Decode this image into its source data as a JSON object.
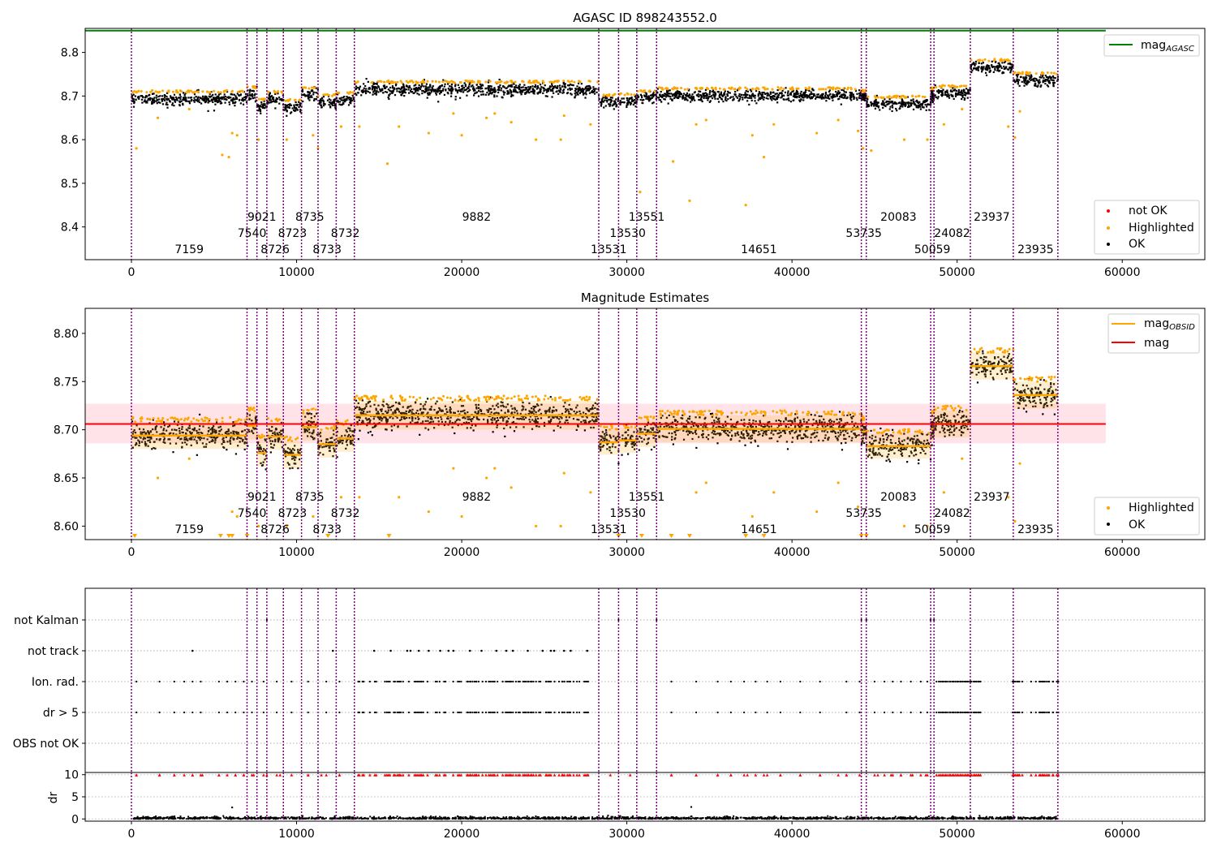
{
  "colors": {
    "obs_line": "#800080",
    "ok": "#000000",
    "highlighted": "#ffa500",
    "not_ok": "#ff0000",
    "agasc_line": "#008000",
    "mag_line": "#ff0000",
    "mag_band": "#ffc0cb",
    "obsid_mag": "#ffa500"
  },
  "chart_data": [
    {
      "id": "agasc_panel",
      "type": "scatter",
      "title": "AGASC ID 898243552.0",
      "xlim": [
        -2800,
        65000
      ],
      "ylim": [
        8.325,
        8.855
      ],
      "xticks": [
        0,
        10000,
        20000,
        30000,
        40000,
        50000,
        60000
      ],
      "yticks": [
        8.4,
        8.5,
        8.6,
        8.7,
        8.8
      ],
      "ytick_decimals": 1,
      "legends": [
        {
          "position": "top-right",
          "entries": [
            {
              "label": "mag",
              "sub": "AGASC",
              "kind": "line",
              "color": "#008000"
            }
          ]
        },
        {
          "position": "bottom-right",
          "entries": [
            {
              "label": "not OK",
              "kind": "dot",
              "color": "#ff0000"
            },
            {
              "label": "Highlighted",
              "kind": "dot",
              "color": "#ffa500"
            },
            {
              "label": "OK",
              "kind": "dot",
              "color": "#000000"
            }
          ]
        }
      ],
      "hline": {
        "y": 8.85,
        "x0": -2800,
        "x1": 59000,
        "color": "#008000"
      },
      "show_obsid_mean": false,
      "show_mag_band": false
    },
    {
      "id": "estimates_panel",
      "type": "scatter",
      "title": "Magnitude Estimates",
      "xlim": [
        -2800,
        65000
      ],
      "ylim": [
        8.586,
        8.826
      ],
      "xticks": [
        0,
        10000,
        20000,
        30000,
        40000,
        50000,
        60000
      ],
      "yticks": [
        8.6,
        8.65,
        8.7,
        8.75,
        8.8
      ],
      "ytick_decimals": 2,
      "legends": [
        {
          "position": "top-right",
          "entries": [
            {
              "label": "mag",
              "sub": "OBSID",
              "kind": "line",
              "color": "#ffa500"
            },
            {
              "label": "mag",
              "kind": "line",
              "color": "#ff0000"
            }
          ]
        },
        {
          "position": "bottom-right",
          "entries": [
            {
              "label": "Highlighted",
              "kind": "dot",
              "color": "#ffa500"
            },
            {
              "label": "OK",
              "kind": "dot",
              "color": "#000000"
            }
          ]
        }
      ],
      "mag": {
        "value": 8.706,
        "band": [
          8.686,
          8.727
        ],
        "x0": -2800,
        "x1": 59000
      },
      "show_obsid_mean": true,
      "show_mag_band": true,
      "below_markers_x": [
        200,
        5400,
        5900,
        6100,
        7000,
        11900,
        15600,
        29500,
        30900,
        32700,
        33800,
        37200,
        38300,
        44200,
        44500
      ]
    },
    {
      "id": "flags_panel",
      "type": "scatter",
      "xlim": [
        -2800,
        65000
      ],
      "categories": [
        "not Kalman",
        "not track",
        "Ion. rad.",
        "dr > 5",
        "OBS not OK"
      ]
    },
    {
      "id": "dr_panel",
      "type": "scatter",
      "xlim": [
        -2800,
        65000
      ],
      "ylim": [
        -0.5,
        10.5
      ],
      "ylabel": "dr",
      "xticks": [
        0,
        10000,
        20000,
        30000,
        40000,
        50000,
        60000
      ],
      "yticks": [
        0,
        5,
        10
      ]
    }
  ],
  "observations": [
    {
      "obsid": "7159",
      "x0": 0,
      "x1": 7000,
      "mean": 8.694,
      "spread": 0.014,
      "label_row": 3
    },
    {
      "obsid": "7540",
      "x0": 7000,
      "x1": 7600,
      "mean": 8.704,
      "spread": 0.014,
      "label_row": 2
    },
    {
      "obsid": "9021",
      "x0": 7600,
      "x1": 8200,
      "mean": 8.676,
      "spread": 0.014,
      "label_row": 1
    },
    {
      "obsid": "8726",
      "x0": 8200,
      "x1": 9200,
      "mean": 8.693,
      "spread": 0.014,
      "label_row": 3
    },
    {
      "obsid": "8723",
      "x0": 9200,
      "x1": 10300,
      "mean": 8.674,
      "spread": 0.014,
      "label_row": 2
    },
    {
      "obsid": "8735",
      "x0": 10300,
      "x1": 11300,
      "mean": 8.703,
      "spread": 0.014,
      "label_row": 1
    },
    {
      "obsid": "8733",
      "x0": 11300,
      "x1": 12400,
      "mean": 8.685,
      "spread": 0.014,
      "label_row": 3
    },
    {
      "obsid": "8732",
      "x0": 12400,
      "x1": 13500,
      "mean": 8.691,
      "spread": 0.014,
      "label_row": 2
    },
    {
      "obsid": "9882",
      "x0": 13500,
      "x1": 28300,
      "mean": 8.715,
      "spread": 0.015,
      "label_row": 1
    },
    {
      "obsid": "13531",
      "x0": 28300,
      "x1": 29500,
      "mean": 8.687,
      "spread": 0.013,
      "label_row": 3
    },
    {
      "obsid": "13530",
      "x0": 29500,
      "x1": 30600,
      "mean": 8.689,
      "spread": 0.013,
      "label_row": 2
    },
    {
      "obsid": "13551",
      "x0": 30600,
      "x1": 31800,
      "mean": 8.696,
      "spread": 0.014,
      "label_row": 1
    },
    {
      "obsid": "14651",
      "x0": 31800,
      "x1": 44200,
      "mean": 8.701,
      "spread": 0.014,
      "label_row": 3
    },
    {
      "obsid": "53735",
      "x0": 44200,
      "x1": 44500,
      "mean": 8.698,
      "spread": 0.012,
      "label_row": 2
    },
    {
      "obsid": "20083",
      "x0": 44500,
      "x1": 48400,
      "mean": 8.683,
      "spread": 0.013,
      "label_row": 1
    },
    {
      "obsid": "50059",
      "x0": 48400,
      "x1": 48600,
      "mean": 8.701,
      "spread": 0.014,
      "label_row": 3
    },
    {
      "obsid": "24082",
      "x0": 48600,
      "x1": 50800,
      "mean": 8.706,
      "spread": 0.014,
      "label_row": 2
    },
    {
      "obsid": "23937",
      "x0": 50800,
      "x1": 53400,
      "mean": 8.766,
      "spread": 0.014,
      "label_row": 1
    },
    {
      "obsid": "23935",
      "x0": 53400,
      "x1": 56100,
      "mean": 8.736,
      "spread": 0.014,
      "label_row": 3
    }
  ],
  "obs_boundaries": [
    0,
    7000,
    7600,
    8200,
    9200,
    10300,
    11300,
    12400,
    13500,
    28300,
    29500,
    30600,
    31800,
    44200,
    44500,
    48400,
    48600,
    50800,
    53400,
    56100
  ],
  "highlighted_outliers": [
    {
      "x": 300,
      "y": 8.58
    },
    {
      "x": 1600,
      "y": 8.65
    },
    {
      "x": 3500,
      "y": 8.67
    },
    {
      "x": 5500,
      "y": 8.565
    },
    {
      "x": 5900,
      "y": 8.56
    },
    {
      "x": 6100,
      "y": 8.615
    },
    {
      "x": 6400,
      "y": 8.61
    },
    {
      "x": 7700,
      "y": 8.6
    },
    {
      "x": 9400,
      "y": 8.6
    },
    {
      "x": 11000,
      "y": 8.61
    },
    {
      "x": 11300,
      "y": 8.58
    },
    {
      "x": 12700,
      "y": 8.63
    },
    {
      "x": 13800,
      "y": 8.63
    },
    {
      "x": 15500,
      "y": 8.545
    },
    {
      "x": 16200,
      "y": 8.63
    },
    {
      "x": 18000,
      "y": 8.615
    },
    {
      "x": 19500,
      "y": 8.66
    },
    {
      "x": 20000,
      "y": 8.61
    },
    {
      "x": 21500,
      "y": 8.65
    },
    {
      "x": 23000,
      "y": 8.64
    },
    {
      "x": 24500,
      "y": 8.6
    },
    {
      "x": 26000,
      "y": 8.6
    },
    {
      "x": 26200,
      "y": 8.655
    },
    {
      "x": 27800,
      "y": 8.635
    },
    {
      "x": 30800,
      "y": 8.48
    },
    {
      "x": 32800,
      "y": 8.55
    },
    {
      "x": 33800,
      "y": 8.46
    },
    {
      "x": 34200,
      "y": 8.635
    },
    {
      "x": 34800,
      "y": 8.645
    },
    {
      "x": 37200,
      "y": 8.45
    },
    {
      "x": 37600,
      "y": 8.61
    },
    {
      "x": 38300,
      "y": 8.56
    },
    {
      "x": 38900,
      "y": 8.635
    },
    {
      "x": 41500,
      "y": 8.615
    },
    {
      "x": 42800,
      "y": 8.645
    },
    {
      "x": 44000,
      "y": 8.62
    },
    {
      "x": 44300,
      "y": 8.58
    },
    {
      "x": 44800,
      "y": 8.575
    },
    {
      "x": 46800,
      "y": 8.6
    },
    {
      "x": 48200,
      "y": 8.6
    },
    {
      "x": 49200,
      "y": 8.635
    },
    {
      "x": 53100,
      "y": 8.63
    },
    {
      "x": 53500,
      "y": 8.605
    },
    {
      "x": 53800,
      "y": 8.665
    },
    {
      "x": 50300,
      "y": 8.67
    },
    {
      "x": 22000,
      "y": 8.66
    }
  ],
  "flag_events": {
    "not Kalman": [
      8200,
      29500,
      31800,
      44200,
      44500,
      48400,
      48600
    ],
    "not track": [
      3700,
      12200,
      14700,
      15700,
      16700,
      16900,
      17400,
      18000,
      18700,
      19200,
      19500,
      20500,
      21200,
      22100,
      22700,
      23100,
      24000,
      24900,
      25400,
      25600,
      26200,
      26600,
      27600
    ],
    "ion_dense_ranges": [
      [
        13700,
        27800,
        0.55
      ],
      [
        48700,
        51400,
        0.95
      ],
      [
        53300,
        56100,
        0.5
      ]
    ],
    "ion_extra": [
      300,
      1700,
      2600,
      3200,
      3700,
      4200,
      5300,
      5800,
      6300,
      6800,
      7300,
      8000,
      8800,
      9700,
      10700,
      11800,
      12600,
      32700,
      34200,
      35500,
      36300,
      37100,
      37800,
      38500,
      39300,
      40500,
      41700,
      43300,
      44100,
      45000,
      45600,
      46100,
      46600,
      47200,
      47800,
      48200
    ],
    "red_dr_sparse": [
      300,
      1700,
      2600,
      3700,
      4300,
      5300,
      6300,
      6800,
      7400,
      8200,
      9000,
      10700,
      11500,
      12600,
      29000,
      30200,
      32700,
      34200,
      35500,
      36300,
      37300,
      38300,
      39300,
      40500,
      41700,
      42800,
      43300,
      45200,
      46000,
      46600,
      47300,
      48100
    ]
  }
}
